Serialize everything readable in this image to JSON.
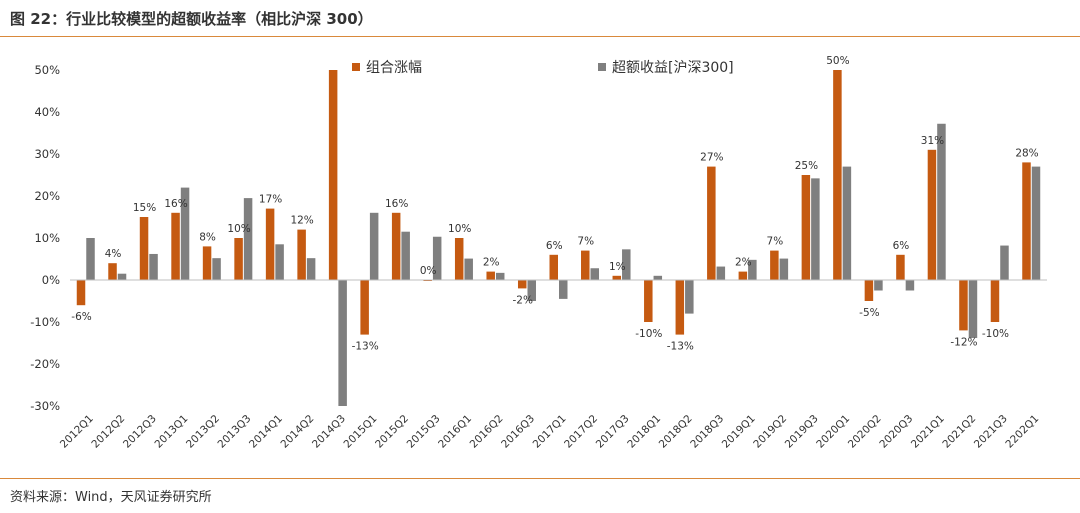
{
  "figure": {
    "title": "图 22：行业比较模型的超额收益率（相比沪深 300）",
    "source": "资料来源：Wind，天风证券研究所"
  },
  "colors": {
    "series1": "#c55a11",
    "series2": "#7f7f7f",
    "accent": "#d9893b"
  },
  "chart_data": {
    "type": "bar",
    "categories": [
      "2012Q1",
      "2012Q2",
      "2012Q3",
      "2013Q1",
      "2013Q2",
      "2013Q3",
      "2014Q1",
      "2014Q2",
      "2014Q3",
      "2015Q1",
      "2015Q2",
      "2015Q3",
      "2016Q1",
      "2016Q2",
      "2016Q3",
      "2017Q1",
      "2017Q2",
      "2017Q3",
      "2018Q1",
      "2018Q2",
      "2018Q3",
      "2019Q1",
      "2019Q2",
      "2019Q3",
      "2020Q1",
      "2020Q2",
      "2020Q3",
      "2021Q1",
      "2021Q2",
      "2021Q3",
      "2202Q1"
    ],
    "series": [
      {
        "name": "组合涨幅",
        "values": [
          -6,
          4,
          15,
          16,
          8,
          10,
          17,
          12,
          50,
          -13,
          16,
          0,
          10,
          2,
          -2,
          6,
          7,
          1,
          -10,
          -13,
          27,
          2,
          7,
          25,
          50,
          -5,
          6,
          31,
          -12,
          -10,
          28
        ],
        "data_labels": [
          "-6%",
          "4%",
          "15%",
          "16%",
          "8%",
          "10%",
          "17%",
          "12%",
          "",
          "-13%",
          "16%",
          "0%",
          "10%",
          "2%",
          "-2%",
          "6%",
          "7%",
          "1%",
          "-10%",
          "-13%",
          "27%",
          "2%",
          "7%",
          "25%",
          "50%",
          "-5%",
          "6%",
          "31%",
          "-12%",
          "-10%",
          "28%"
        ]
      },
      {
        "name": "超额收益[沪深300]",
        "values": [
          10,
          1.5,
          6.2,
          22,
          5.2,
          19.5,
          8.5,
          5.2,
          -30,
          16,
          11.5,
          10.3,
          5.1,
          1.7,
          -5,
          -4.5,
          2.8,
          7.3,
          1,
          -8,
          3.2,
          4.8,
          5.1,
          24.2,
          27,
          -2.5,
          -2.5,
          37.2,
          -13.8,
          8.2,
          27
        ]
      }
    ],
    "ylim": [
      -30,
      50
    ],
    "yticks": [
      -30,
      -20,
      -10,
      0,
      10,
      20,
      30,
      40,
      50
    ],
    "ytick_labels": [
      "-30%",
      "-20%",
      "-10%",
      "0%",
      "10%",
      "20%",
      "30%",
      "40%",
      "50%"
    ],
    "grid": false,
    "legend_position": "top"
  }
}
